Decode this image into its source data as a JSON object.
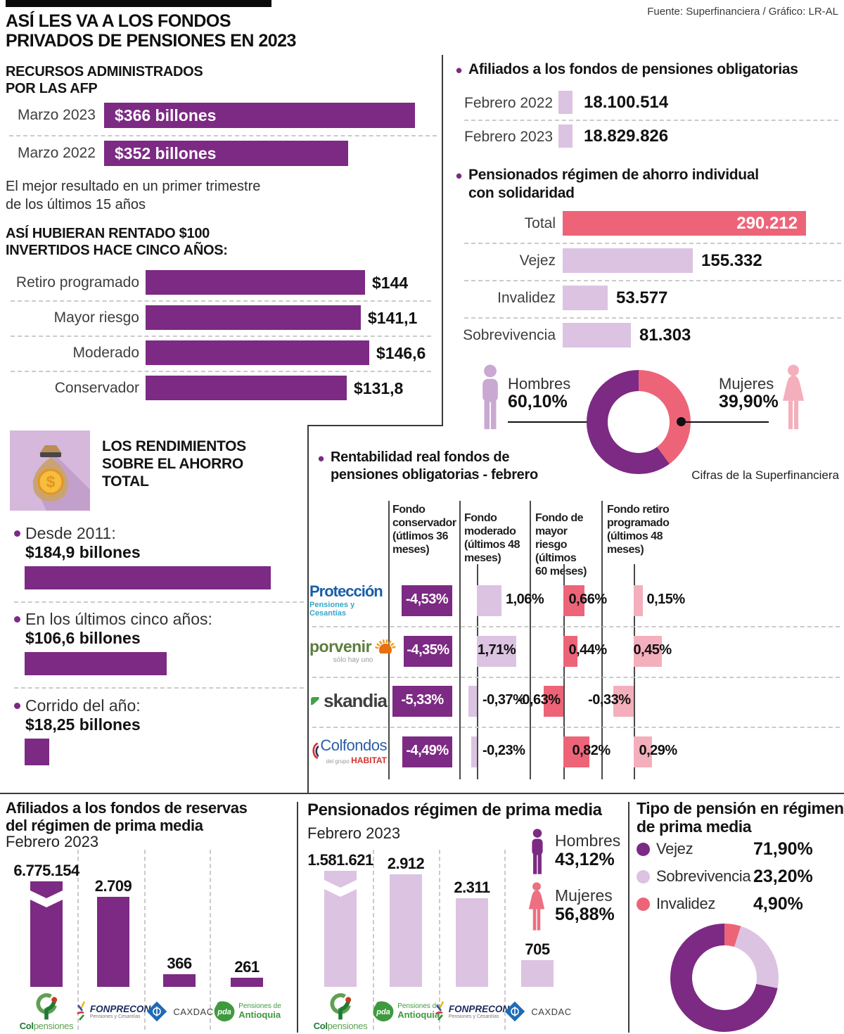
{
  "header": {
    "title": "ASÍ LES VA A LOS FONDOS\nPRIVADOS DE PENSIONES EN 2023",
    "source": "Fuente: Superfinanciera / Gráfico: LR-AL"
  },
  "colors": {
    "purple": "#7C2A83",
    "lilac": "#DCC3E2",
    "coral": "#ED6478",
    "light_pink": "#F4AFBC",
    "icon_lilac": "#C9A8D2",
    "icon_bg_lilac": "#D5B8DC"
  },
  "icons": {
    "rendimientos": "money-bag-icon",
    "hombres": "person-man-icon",
    "mujeres": "person-woman-icon"
  },
  "logos": {
    "proteccion": {
      "name": "Protección",
      "tagline": "Pensiones y Cesantías"
    },
    "porvenir": {
      "name": "porvenir",
      "tagline": "sólo hay uno"
    },
    "skandia": {
      "name": "skandia"
    },
    "colfondos": {
      "name": "Colfondos",
      "tagline_prefix": "del grupo",
      "tagline": "HABITAT"
    },
    "colpensiones": {
      "prefix": "Col",
      "suffix": "pensiones"
    },
    "fonprecon": {
      "name": "FONPRECON",
      "tagline": "Pensiones y Cesantías"
    },
    "caxdac": {
      "name": "CAXDAC"
    },
    "antioquia": {
      "abbr": "pda",
      "name": "Pensiones de\nAntioquia"
    }
  },
  "chart_data": [
    {
      "id": "recursos",
      "type": "bar",
      "title": "RECURSOS ADMINISTRADOS\nPOR LAS AFP",
      "categories": [
        "Marzo 2023",
        "Marzo 2022"
      ],
      "values": [
        366,
        352
      ],
      "value_labels": [
        "$366 billones",
        "$352 billones"
      ],
      "note": "El mejor resultado en un primer trimestre\nde los últimos 15 años"
    },
    {
      "id": "rentado",
      "type": "bar",
      "title": "ASÍ HUBIERAN RENTADO $100\nINVERTIDOS HACE CINCO AÑOS:",
      "categories": [
        "Retiro programado",
        "Mayor riesgo",
        "Moderado",
        "Conservador"
      ],
      "values": [
        144,
        141.1,
        146.6,
        131.8
      ],
      "value_labels": [
        "$144",
        "$141,1",
        "$146,6",
        "$131,8"
      ]
    },
    {
      "id": "rendimientos",
      "type": "bar",
      "title": "LOS RENDIMIENTOS\nSOBRE EL AHORRO\nTOTAL",
      "categories": [
        "Desde 2011:",
        "En los últimos cinco años:",
        "Corrido del año:"
      ],
      "values": [
        184.9,
        106.6,
        18.25
      ],
      "value_labels": [
        "$184,9 billones",
        "$106,6 billones",
        "$18,25 billones"
      ]
    },
    {
      "id": "afiliados",
      "type": "bar",
      "title": "Afiliados a los fondos de pensiones obligatorias",
      "categories": [
        "Febrero 2022",
        "Febrero 2023"
      ],
      "values": [
        18100514,
        18829826
      ],
      "value_labels": [
        "18.100.514",
        "18.829.826"
      ]
    },
    {
      "id": "rais",
      "type": "bar",
      "title": "Pensionados régimen de ahorro individual\ncon solidaridad",
      "categories": [
        "Total",
        "Vejez",
        "Invalidez",
        "Sobrevivencia"
      ],
      "values": [
        290212,
        155332,
        53577,
        81303
      ],
      "value_labels": [
        "290.212",
        "155.332",
        "53.577",
        "81.303"
      ]
    },
    {
      "id": "rais_gender",
      "type": "donut",
      "labels": [
        "Hombres",
        "Mujeres"
      ],
      "values": [
        60.1,
        39.9
      ],
      "value_labels": [
        "60,10%",
        "39,90%"
      ]
    },
    {
      "id": "rentabilidad",
      "type": "bar-table",
      "title": "Rentabilidad real fondos de\npensiones obligatorias - febrero",
      "source_note": "Cifras de la Superfinanciera",
      "columns": [
        "Fondo\nconservador\n(útlimos 36\nmeses)",
        "Fondo moderado\n(últimos 48\nmeses)",
        "Fondo de mayor\nriesgo (últimos\n60 meses)",
        "Fondo retiro\nprogramado\n(últimos 48\nmeses)"
      ],
      "rows": [
        {
          "fund": "Protección",
          "logo": "proteccion",
          "values": [
            -4.53,
            1.06,
            0.66,
            0.15
          ],
          "value_labels": [
            "-4,53%",
            "1,06%",
            "0,66%",
            "0,15%"
          ]
        },
        {
          "fund": "Porvenir",
          "logo": "porvenir",
          "values": [
            -4.35,
            1.71,
            0.44,
            0.45
          ],
          "value_labels": [
            "-4,35%",
            "1,71%",
            "0,44%",
            "0,45%"
          ]
        },
        {
          "fund": "Skandia",
          "logo": "skandia",
          "values": [
            -5.33,
            -0.37,
            -0.63,
            -0.33
          ],
          "value_labels": [
            "-5,33%",
            "-0,37%",
            "-0,63%",
            "-0,33%"
          ]
        },
        {
          "fund": "Colfondos",
          "logo": "colfondos",
          "values": [
            -4.49,
            -0.23,
            0.82,
            0.29
          ],
          "value_labels": [
            "-4,49%",
            "-0,23%",
            "0,82%",
            "0,29%"
          ]
        }
      ]
    },
    {
      "id": "reservas",
      "type": "bar",
      "title": "Afiliados a los fondos de reservas\ndel régimen de prima media",
      "subtitle": "Febrero 2023",
      "categories": [
        "Colpensiones",
        "Fonprecon",
        "Caxdac",
        "Pensiones de Antioquia"
      ],
      "logo_keys": [
        "colpensiones",
        "fonprecon",
        "caxdac",
        "antioquia"
      ],
      "values": [
        6775154,
        2709,
        366,
        261
      ],
      "value_labels": [
        "6.775.154",
        "2.709",
        "366",
        "261"
      ]
    },
    {
      "id": "prima_media",
      "type": "bar",
      "title": "Pensionados régimen de prima media",
      "subtitle": "Febrero 2023",
      "categories": [
        "Colpensiones",
        "Pensiones de Antioquia",
        "Fonprecon",
        "Caxdac"
      ],
      "logo_keys": [
        "colpensiones",
        "antioquia",
        "fonprecon",
        "caxdac"
      ],
      "values": [
        1581621,
        2912,
        2311,
        705
      ],
      "value_labels": [
        "1.581.621",
        "2.912",
        "2.311",
        "705"
      ],
      "legend": [
        {
          "label": "Hombres",
          "value": 43.12,
          "value_label": "43,12%"
        },
        {
          "label": "Mujeres",
          "value": 56.88,
          "value_label": "56,88%"
        }
      ]
    },
    {
      "id": "tipo_pension",
      "type": "donut",
      "title": "Tipo de pensión en régimen\nde prima media",
      "labels": [
        "Vejez",
        "Sobrevivencia",
        "Invalidez"
      ],
      "values": [
        71.9,
        23.2,
        4.9
      ],
      "value_labels": [
        "71,90%",
        "23,20%",
        "4,90%"
      ]
    }
  ]
}
